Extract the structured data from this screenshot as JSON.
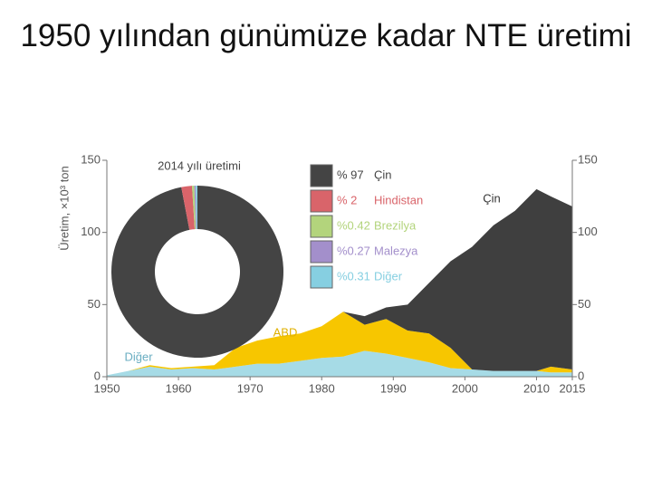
{
  "title": "1950 yılından günümüze kadar NTE üretimi",
  "chart_data": [
    {
      "type": "area",
      "ylabel": "Üretim, ×10³ ton",
      "x": [
        1950,
        1953,
        1956,
        1959,
        1962,
        1965,
        1968,
        1971,
        1974,
        1977,
        1980,
        1983,
        1986,
        1989,
        1992,
        1995,
        1998,
        2001,
        2004,
        2007,
        2010,
        2012,
        2015
      ],
      "xlim": [
        1950,
        2015
      ],
      "xticks": [
        1950,
        1960,
        1970,
        1980,
        1990,
        2000,
        2010,
        2015
      ],
      "ylim": [
        0,
        150
      ],
      "yticks": [
        0,
        50,
        100,
        150
      ],
      "y2lim": [
        0,
        150
      ],
      "y2ticks": [
        0,
        50,
        100,
        150
      ],
      "series": [
        {
          "name": "Diğer",
          "color": "#a6dbe6",
          "values": [
            1,
            4,
            7,
            5,
            6,
            5,
            7,
            9,
            9,
            11,
            13,
            14,
            18,
            16,
            13,
            10,
            6,
            5,
            4,
            4,
            4,
            3,
            3
          ]
        },
        {
          "name": "ABD",
          "color": "#f7c600",
          "values": [
            0,
            0,
            1,
            1,
            1,
            3,
            13,
            16,
            19,
            19,
            22,
            31,
            18,
            24,
            19,
            20,
            14,
            0,
            0,
            0,
            0,
            4,
            2
          ]
        },
        {
          "name": "Çin",
          "color": "#3f3f3f",
          "values": [
            0,
            0,
            0,
            0,
            0,
            0,
            0,
            0,
            0,
            0,
            0,
            0,
            6,
            8,
            18,
            35,
            60,
            85,
            101,
            111,
            126,
            118,
            113
          ]
        }
      ]
    },
    {
      "type": "pie",
      "title": "2014 yılı üretimi",
      "categories": [
        "Çin",
        "Hindistan",
        "Brezilya",
        "Malezya",
        "Diğer"
      ],
      "values": [
        97,
        2,
        0.42,
        0.27,
        0.31
      ],
      "value_labels": [
        "% 97",
        "% 2",
        "%0.42",
        "%0.27",
        "%0.31"
      ],
      "colors": [
        "#444444",
        "#d9646a",
        "#b3d47c",
        "#a38fcb",
        "#86cfe1"
      ]
    }
  ]
}
